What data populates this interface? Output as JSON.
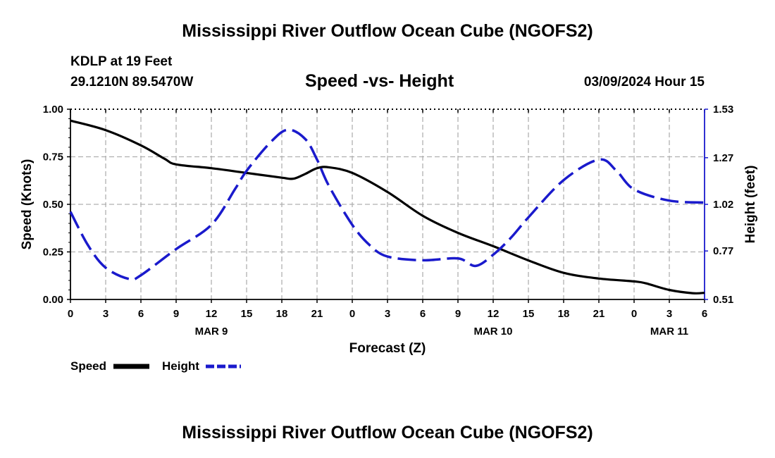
{
  "header": {
    "title": "Mississippi River Outflow Ocean Cube (NGOFS2)",
    "footer_title": "Mississippi River Outflow Ocean Cube (NGOFS2)",
    "station": "KDLP at 19 Feet",
    "coords": "29.1210N  89.5470W",
    "datetime": "03/09/2024 Hour 15"
  },
  "chart_data": {
    "type": "line",
    "title": "Speed -vs- Height",
    "xlabel": "Forecast (Z)",
    "ylabel": "Speed (Knots)",
    "y2label": "Height (feet)",
    "x_range": [
      0,
      54
    ],
    "x_ticks": [
      0,
      3,
      6,
      9,
      12,
      15,
      18,
      21,
      24,
      27,
      30,
      33,
      36,
      39,
      42,
      45,
      48,
      51,
      54
    ],
    "x_tick_labels": [
      "0",
      "3",
      "6",
      "9",
      "12",
      "15",
      "18",
      "21",
      "0",
      "3",
      "6",
      "9",
      "12",
      "15",
      "18",
      "21",
      "0",
      "3",
      "6"
    ],
    "date_labels": [
      {
        "x": 12,
        "label": "MAR 9"
      },
      {
        "x": 36,
        "label": "MAR 10"
      },
      {
        "x": 51,
        "label": "MAR 11"
      }
    ],
    "ylim": [
      0,
      1
    ],
    "y_ticks": [
      0,
      0.25,
      0.5,
      0.75,
      1
    ],
    "y_tick_labels": [
      "0.00",
      "0.25",
      "0.50",
      "0.75",
      "1.00"
    ],
    "y2lim": [
      0.51,
      1.53
    ],
    "y2_ticks": [
      0.51,
      0.77,
      1.02,
      1.27,
      1.53
    ],
    "y2_tick_labels": [
      "0.51",
      "0.77",
      "1.02",
      "1.27",
      "1.53"
    ],
    "grid": true,
    "series": [
      {
        "name": "Speed",
        "axis": "left",
        "color": "#000000",
        "dash": "solid",
        "x": [
          0,
          3,
          6,
          8,
          9,
          12,
          15,
          18,
          19,
          20,
          21,
          22,
          24,
          27,
          30,
          33,
          36,
          39,
          42,
          45,
          48,
          49,
          51,
          53,
          54
        ],
        "values": [
          0.94,
          0.89,
          0.81,
          0.74,
          0.71,
          0.69,
          0.665,
          0.64,
          0.635,
          0.66,
          0.69,
          0.695,
          0.665,
          0.565,
          0.44,
          0.35,
          0.28,
          0.205,
          0.14,
          0.11,
          0.095,
          0.085,
          0.05,
          0.033,
          0.035
        ]
      },
      {
        "name": "Height",
        "axis": "right",
        "color": "#1a1acc",
        "dash": "dashed",
        "x": [
          0,
          1.5,
          3,
          5,
          6,
          9,
          12,
          14,
          15,
          17,
          18.5,
          20,
          21,
          22,
          24,
          25.5,
          27,
          30,
          33,
          34.5,
          36,
          37.5,
          39,
          42,
          45,
          46.5,
          48,
          51,
          54
        ],
        "values": [
          0.98,
          0.8,
          0.68,
          0.62,
          0.64,
          0.78,
          0.91,
          1.1,
          1.2,
          1.35,
          1.42,
          1.37,
          1.26,
          1.12,
          0.91,
          0.8,
          0.74,
          0.72,
          0.73,
          0.69,
          0.75,
          0.84,
          0.95,
          1.15,
          1.26,
          1.2,
          1.1,
          1.04,
          1.03
        ]
      }
    ]
  },
  "legend": {
    "speed_label": "Speed",
    "height_label": "Height",
    "speed_color": "#000000",
    "height_color": "#1a1acc"
  }
}
